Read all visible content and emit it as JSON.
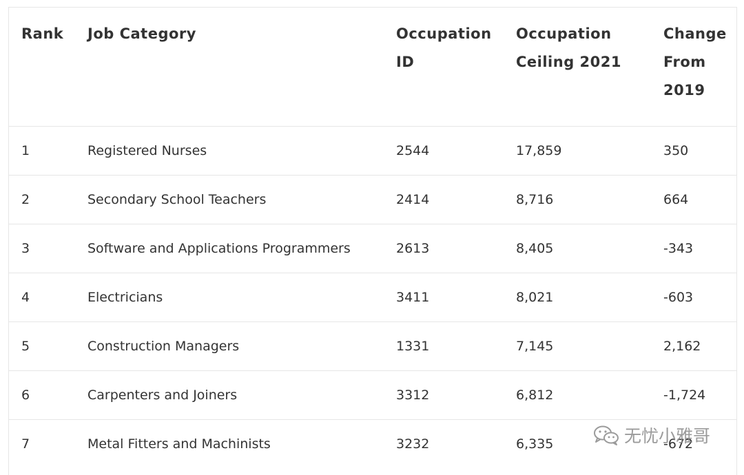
{
  "table": {
    "headers": {
      "rank": "Rank",
      "job_category": "Job Category",
      "occupation_id": "Occupation ID",
      "occupation_ceiling": "Occupation Ceiling 2021",
      "change": "Change From 2019"
    },
    "rows": [
      {
        "rank": "1",
        "job": "Registered Nurses",
        "id": "2544",
        "ceiling": "17,859",
        "change": "350"
      },
      {
        "rank": "2",
        "job": "Secondary School Teachers",
        "id": "2414",
        "ceiling": "8,716",
        "change": "664"
      },
      {
        "rank": "3",
        "job": "Software and Applications Programmers",
        "id": "2613",
        "ceiling": "8,405",
        "change": "-343"
      },
      {
        "rank": "4",
        "job": "Electricians",
        "id": "3411",
        "ceiling": "8,021",
        "change": "-603"
      },
      {
        "rank": "5",
        "job": "Construction Managers",
        "id": "1331",
        "ceiling": "7,145",
        "change": "2,162"
      },
      {
        "rank": "6",
        "job": "Carpenters and Joiners",
        "id": "3312",
        "ceiling": "6,812",
        "change": "-1,724"
      },
      {
        "rank": "7",
        "job": "Metal Fitters and Machinists",
        "id": "3232",
        "ceiling": "6,335",
        "change": "-672"
      }
    ]
  },
  "watermark": {
    "icon": "wechat-icon",
    "text": "无忧小雅哥"
  }
}
